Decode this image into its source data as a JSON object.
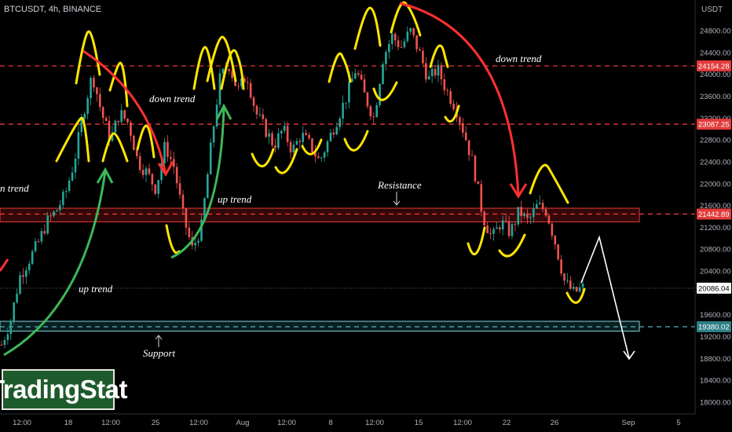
{
  "symbol": "BTCUSDT, 4h, BINANCE",
  "currency": "USDT",
  "logo": "TradingStat",
  "annotations": {
    "down_trend_left_cut": "n trend",
    "down_trend_1": "down trend",
    "down_trend_2": "down trend",
    "up_trend_1": "up trend",
    "up_trend_2": "up trend",
    "resistance": "Resistance",
    "support": "Support"
  },
  "colors": {
    "background": "#000000",
    "candle_up": "#26a69a",
    "candle_down": "#ef5350",
    "level_line": "#ff3b3b",
    "support_line": "#4fb3bf",
    "wave": "#ffe600",
    "down_arrow": "#ff3030",
    "up_arrow": "#3cb85a",
    "projection": "#ffffff"
  },
  "chart_data": {
    "type": "candlestick",
    "symbol": "BTCUSDT",
    "timeframe": "4h",
    "exchange": "BINANCE",
    "ylim": [
      17900,
      25300
    ],
    "y_ticks": [
      18000,
      18400,
      18800,
      19200,
      19600,
      20400,
      20800,
      21200,
      21600,
      22000,
      22400,
      22800,
      23200,
      23600,
      24000,
      24400,
      24800
    ],
    "y_tick_labels": [
      "18000.00",
      "18400.00",
      "18800.00",
      "19200.00",
      "19600.00",
      "20400.00",
      "20800.00",
      "21200.00",
      "21600.00",
      "22000.00",
      "22400.00",
      "22800.00",
      "23200.00",
      "23600.00",
      "24000.00",
      "24400.00",
      "24800.00"
    ],
    "x_labels": [
      "12:00",
      "18",
      "12:00",
      "25",
      "12:00",
      "Aug",
      "12:00",
      "8",
      "12:00",
      "15",
      "12:00",
      "22",
      "26",
      "Sep",
      "5"
    ],
    "x_label_positions_px_hint": "layout only, kept in script",
    "levels": [
      {
        "price": 24154.28,
        "label": "24154.28",
        "style": "dashed",
        "color": "#ff3b3b"
      },
      {
        "price": 23087.25,
        "label": "23087.25",
        "style": "dashed",
        "color": "#ff3b3b"
      },
      {
        "price": 21442.89,
        "label": "21442.89",
        "style": "dashed",
        "color": "#ff3b3b"
      },
      {
        "price": 20086.04,
        "label": "20086.04",
        "style": "dotted",
        "color": "#ffffff"
      },
      {
        "price": 19380.02,
        "label": "19380.02",
        "style": "dashed",
        "color": "#4fb3bf"
      }
    ],
    "zones": [
      {
        "name": "Resistance",
        "low": 21300,
        "high": 21550
      },
      {
        "name": "Support",
        "low": 19300,
        "high": 19480
      }
    ],
    "close_path": [
      19050,
      19500,
      20300,
      20600,
      20900,
      21300,
      21500,
      21800,
      22400,
      23300,
      24000,
      23300,
      22800,
      23300,
      23100,
      22400,
      22200,
      21900,
      22700,
      22300,
      21400,
      20800,
      21200,
      22600,
      23900,
      24200,
      23700,
      24000,
      23300,
      23000,
      22700,
      23000,
      22600,
      22900,
      22700,
      22400,
      22800,
      23200,
      23600,
      24100,
      23600,
      23200,
      24300,
      24700,
      24500,
      24800,
      24400,
      23900,
      24100,
      23700,
      23400,
      22900,
      22300,
      21400,
      21000,
      21300,
      21100,
      21500,
      21300,
      21600,
      21500,
      20900,
      20200,
      20000,
      20100
    ]
  }
}
